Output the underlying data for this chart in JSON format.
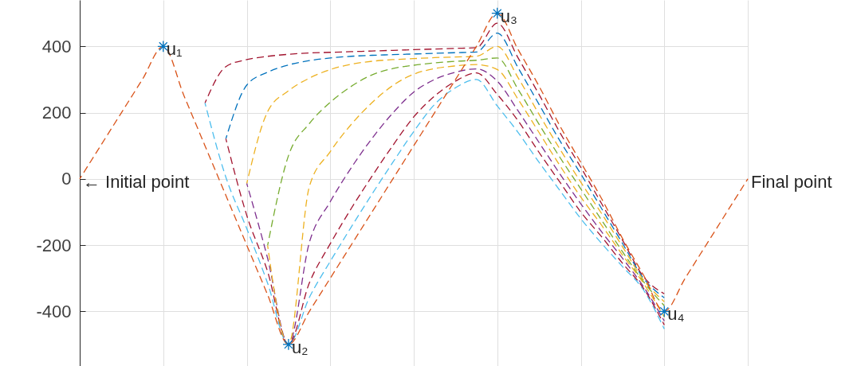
{
  "chart_data": {
    "type": "line",
    "categories": [
      null,
      null,
      null,
      null,
      null,
      null,
      null,
      null,
      null,
      null,
      null,
      null,
      null,
      null,
      null,
      null,
      null,
      null,
      null,
      null,
      null,
      null,
      null,
      null,
      null,
      null,
      null,
      null,
      null,
      null,
      null,
      null,
      null
    ],
    "ylim": [
      -565,
      540
    ],
    "yticks": [
      -400,
      -200,
      0,
      200,
      400
    ],
    "grid": true,
    "tick_labels": "y",
    "line_style": "dashed",
    "series": [
      {
        "color": "#A2142F",
        "values": [
          null,
          null,
          null,
          null,
          null,
          null,
          229,
          339,
          360,
          370,
          376,
          380,
          382,
          384,
          386,
          388,
          390,
          392,
          394,
          396,
          470,
          365,
          255,
          140,
          35,
          -75,
          -185,
          -295,
          -347,
          null,
          null,
          null,
          null
        ]
      },
      {
        "color": "#4DBEEE",
        "values": [
          null,
          null,
          null,
          null,
          null,
          null,
          229,
          5,
          -150,
          -315,
          -500,
          -358,
          -249,
          -146,
          -46,
          50,
          143,
          225,
          275,
          300,
          220,
          140,
          50,
          -35,
          -120,
          -195,
          -265,
          -335,
          -453,
          null,
          null,
          null,
          null
        ]
      },
      {
        "color": "#0072BD",
        "values": [
          null,
          null,
          null,
          null,
          null,
          null,
          null,
          121,
          283,
          322,
          344,
          357,
          365,
          370,
          373,
          375,
          377,
          379,
          381,
          383,
          440,
          335,
          225,
          115,
          15,
          -90,
          -195,
          -300,
          -359,
          null,
          null,
          null,
          null
        ]
      },
      {
        "color": "#A2142F",
        "values": [
          null,
          null,
          null,
          null,
          null,
          null,
          null,
          121,
          -110,
          -280,
          -500,
          -314,
          -196,
          -90,
          8,
          101,
          187,
          250,
          295,
          320,
          255,
          175,
          80,
          -10,
          -100,
          -175,
          -255,
          -330,
          -441,
          null,
          null,
          null,
          null
        ]
      },
      {
        "color": "#EDB120",
        "values": [
          null,
          null,
          null,
          null,
          null,
          null,
          null,
          null,
          -14,
          203,
          266,
          304,
          330,
          346,
          355,
          360,
          363,
          366,
          368,
          370,
          400,
          305,
          195,
          90,
          -10,
          -105,
          -205,
          -305,
          -371,
          null,
          null,
          null,
          null
        ]
      },
      {
        "color": "#7E2F8E",
        "values": [
          null,
          null,
          null,
          null,
          null,
          null,
          null,
          null,
          -14,
          -240,
          -500,
          -192,
          -69,
          33,
          122,
          199,
          262,
          300,
          322,
          332,
          295,
          205,
          110,
          15,
          -75,
          -160,
          -240,
          -325,
          -429,
          null,
          null,
          null,
          null
        ]
      },
      {
        "color": "#77AC30",
        "values": [
          null,
          null,
          null,
          null,
          null,
          null,
          null,
          null,
          null,
          -201,
          70,
          167,
          231,
          279,
          314,
          333,
          343,
          350,
          355,
          358,
          365,
          270,
          165,
          65,
          -30,
          -125,
          -220,
          -310,
          -383,
          null,
          null,
          null,
          null
        ]
      },
      {
        "color": "#EDB120",
        "values": [
          null,
          null,
          null,
          null,
          null,
          null,
          null,
          null,
          null,
          -201,
          -500,
          -23,
          82,
          164,
          230,
          282,
          316,
          333,
          341,
          345,
          330,
          240,
          140,
          40,
          -55,
          -140,
          -230,
          -315,
          -417,
          null,
          null,
          null,
          null
        ]
      },
      {
        "color": "#D95319",
        "values": [
          0,
          100,
          200,
          300,
          400,
          250,
          100,
          -50,
          -200,
          -350,
          -500,
          -400,
          -300,
          -200,
          -100,
          0,
          100,
          200,
          300,
          400,
          500,
          390,
          280,
          160,
          50,
          -60,
          -180,
          -290,
          -400,
          -300,
          -200,
          -100,
          0
        ],
        "value_labels": [
          "← Initial point",
          null,
          null,
          null,
          null,
          null,
          null,
          null,
          null,
          null,
          null,
          null,
          null,
          null,
          null,
          null,
          null,
          null,
          null,
          null,
          null,
          null,
          null,
          null,
          null,
          null,
          null,
          null,
          null,
          null,
          null,
          null,
          "Final point"
        ]
      },
      {
        "type": "scatter",
        "marker": "cross",
        "color": "#0072BD",
        "values": [
          null,
          null,
          null,
          null,
          400,
          null,
          null,
          null,
          null,
          null,
          -500,
          null,
          null,
          null,
          null,
          null,
          null,
          null,
          null,
          null,
          500,
          null,
          null,
          null,
          null,
          null,
          null,
          null,
          -400,
          null,
          null,
          null,
          null
        ],
        "value_labels": [
          null,
          null,
          null,
          null,
          "u₁",
          null,
          null,
          null,
          null,
          null,
          "u₂",
          null,
          null,
          null,
          null,
          null,
          null,
          null,
          null,
          null,
          "u₃",
          null,
          null,
          null,
          null,
          null,
          null,
          null,
          "u₄",
          null,
          null,
          null,
          null
        ]
      }
    ]
  }
}
